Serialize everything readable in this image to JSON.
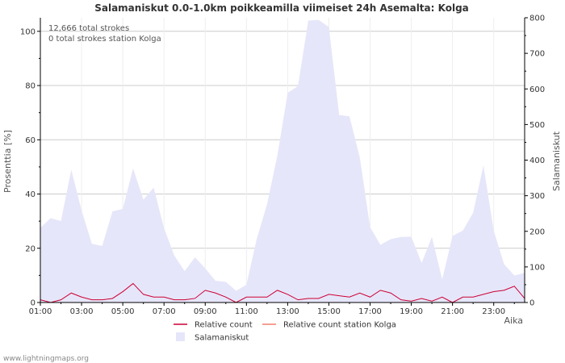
{
  "chart_data": {
    "type": "area",
    "title": "Salamaniskut 0.0-1.0km poikkeamilla viimeiset 24h Asemalta: Kolga",
    "ylabel_left": "Prosenttia   [%]",
    "ylabel_right": "Salamaniskut",
    "xlabel": "Aika",
    "annotations": [
      "12,666 total strokes",
      "0 total strokes station Kolga"
    ],
    "watermark": "www.lightningmaps.org",
    "ylim_left": [
      0,
      105
    ],
    "ylim_right": [
      0,
      800
    ],
    "yticks_left": [
      "0",
      "20",
      "40",
      "60",
      "80",
      "100"
    ],
    "yticks_right": [
      "0",
      "100",
      "200",
      "300",
      "400",
      "500",
      "600",
      "700",
      "800"
    ],
    "xticks": [
      "01:00",
      "03:00",
      "05:00",
      "07:00",
      "09:00",
      "11:00",
      "13:00",
      "15:00",
      "17:00",
      "19:00",
      "21:00",
      "23:00"
    ],
    "x_hours": [
      0.0,
      0.5,
      1.0,
      1.5,
      2.0,
      2.5,
      3.0,
      3.5,
      4.0,
      4.5,
      5.0,
      5.5,
      6.0,
      6.5,
      7.0,
      7.5,
      8.0,
      8.5,
      9.0,
      9.5,
      10.0,
      10.5,
      11.0,
      11.5,
      12.0,
      12.5,
      13.0,
      13.5,
      14.0,
      14.5,
      15.0,
      15.5,
      16.0,
      16.5,
      17.0,
      17.5,
      18.0,
      18.5,
      19.0,
      19.5,
      20.0,
      20.5,
      21.0,
      21.5,
      22.0,
      22.5,
      23.0,
      23.5
    ],
    "series": [
      {
        "name": "Salamaniskut",
        "axis": "right",
        "color": "#e6e6fa",
        "values": [
          210,
          237,
          229,
          373,
          259,
          165,
          159,
          256,
          263,
          377,
          289,
          323,
          209,
          132,
          88,
          127,
          96,
          61,
          58,
          33,
          50,
          179,
          276,
          413,
          589,
          608,
          792,
          794,
          774,
          527,
          523,
          408,
          212,
          162,
          178,
          184,
          185,
          111,
          184,
          65,
          187,
          202,
          252,
          385,
          202,
          108,
          76,
          83
        ]
      },
      {
        "name": "Relative count",
        "axis": "left",
        "color": "#cc0033",
        "values": [
          1,
          0,
          1,
          3.5,
          2,
          1,
          1,
          1.5,
          4,
          7,
          3,
          2,
          2,
          1,
          1,
          1.5,
          4.5,
          3.5,
          2,
          0,
          2,
          2,
          2,
          4.5,
          3,
          1,
          1.5,
          1.5,
          3,
          2.5,
          2,
          3.5,
          2,
          4.5,
          3.5,
          1,
          0.5,
          1.5,
          0.5,
          2,
          0,
          2,
          2,
          3,
          4,
          4.5,
          6,
          1.5
        ]
      },
      {
        "name": "Relative count station Kolga",
        "axis": "left",
        "color": "#f08070",
        "values": [
          0,
          0,
          0,
          0,
          0,
          0,
          0,
          0,
          0,
          0,
          0,
          0,
          0,
          0,
          0,
          0,
          0,
          0,
          0,
          0,
          0,
          0,
          0,
          0,
          0,
          0,
          0,
          0,
          0,
          0,
          0,
          0,
          0,
          0,
          0,
          0,
          0,
          0,
          0,
          0,
          0,
          0,
          0,
          0,
          0,
          0,
          0,
          0
        ]
      }
    ],
    "legend": [
      {
        "label": "Relative count",
        "kind": "line",
        "color": "#cc0033"
      },
      {
        "label": "Relative count station Kolga",
        "kind": "line",
        "color": "#f08070"
      },
      {
        "label": "Salamaniskut",
        "kind": "area",
        "color": "#e6e6fa"
      }
    ],
    "grid": true
  }
}
